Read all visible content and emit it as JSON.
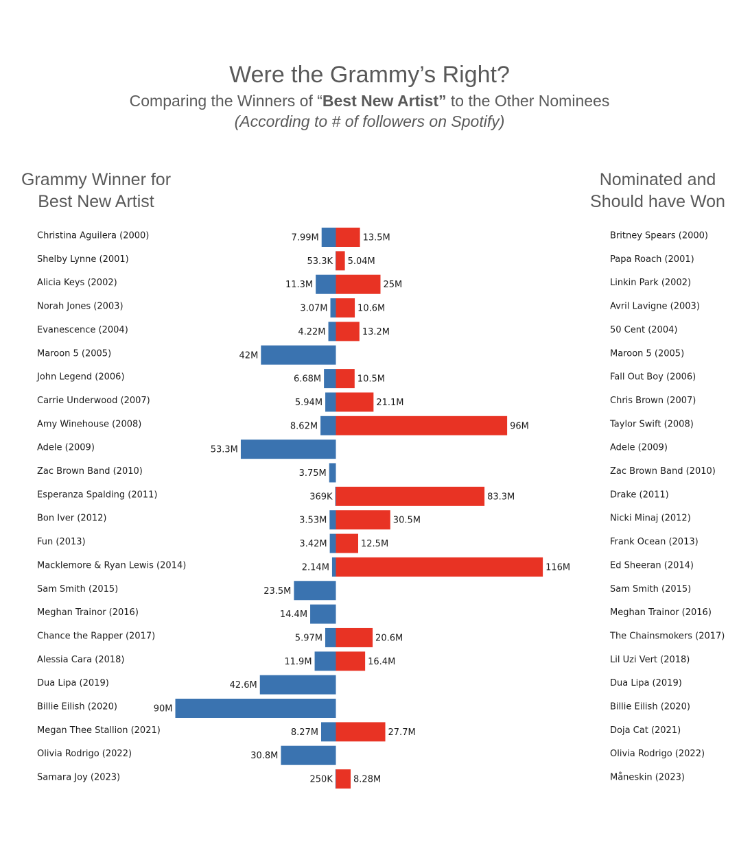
{
  "title": "Were the Grammy’s Right?",
  "subtitle": {
    "prefix": "Comparing the Winners of “",
    "bold": "Best New Artist”",
    "suffix": " to the Other Nominees"
  },
  "note": "(According to # of followers on Spotify)",
  "left_header": [
    "Grammy Winner for",
    "Best New Artist"
  ],
  "right_header": [
    "Nominated and",
    "Should have Won"
  ],
  "colors": {
    "winner": "#3a73b0",
    "nominee": "#e83324",
    "text": "#595959"
  },
  "chart_data": {
    "type": "bar",
    "orientation": "horizontal-diverging",
    "unit": "Spotify followers (millions)",
    "series": [
      {
        "name": "Grammy Winner for Best New Artist"
      },
      {
        "name": "Nominated and Should have Won"
      }
    ],
    "rows": [
      {
        "winner": "Christina Aguilera (2000)",
        "winner_value": 7.99,
        "winner_label": "7.99M",
        "nominee": "Britney Spears (2000)",
        "nominee_value": 13.5,
        "nominee_label": "13.5M"
      },
      {
        "winner": "Shelby Lynne (2001)",
        "winner_value": 0.0533,
        "winner_label": "53.3K",
        "nominee": "Papa Roach (2001)",
        "nominee_value": 5.04,
        "nominee_label": "5.04M"
      },
      {
        "winner": "Alicia Keys (2002)",
        "winner_value": 11.3,
        "winner_label": "11.3M",
        "nominee": "Linkin Park (2002)",
        "nominee_value": 25,
        "nominee_label": "25M"
      },
      {
        "winner": "Norah Jones (2003)",
        "winner_value": 3.07,
        "winner_label": "3.07M",
        "nominee": "Avril Lavigne (2003)",
        "nominee_value": 10.6,
        "nominee_label": "10.6M"
      },
      {
        "winner": "Evanescence (2004)",
        "winner_value": 4.22,
        "winner_label": "4.22M",
        "nominee": "50 Cent (2004)",
        "nominee_value": 13.2,
        "nominee_label": "13.2M"
      },
      {
        "winner": "Maroon 5 (2005)",
        "winner_value": 42,
        "winner_label": "42M",
        "nominee": "Maroon 5 (2005)",
        "nominee_value": null,
        "nominee_label": ""
      },
      {
        "winner": "John Legend (2006)",
        "winner_value": 6.68,
        "winner_label": "6.68M",
        "nominee": "Fall Out Boy (2006)",
        "nominee_value": 10.5,
        "nominee_label": "10.5M"
      },
      {
        "winner": "Carrie Underwood (2007)",
        "winner_value": 5.94,
        "winner_label": "5.94M",
        "nominee": "Chris Brown (2007)",
        "nominee_value": 21.1,
        "nominee_label": "21.1M"
      },
      {
        "winner": "Amy Winehouse (2008)",
        "winner_value": 8.62,
        "winner_label": "8.62M",
        "nominee": "Taylor Swift (2008)",
        "nominee_value": 96,
        "nominee_label": "96M"
      },
      {
        "winner": "Adele (2009)",
        "winner_value": 53.3,
        "winner_label": "53.3M",
        "nominee": "Adele (2009)",
        "nominee_value": null,
        "nominee_label": ""
      },
      {
        "winner": "Zac Brown Band (2010)",
        "winner_value": 3.75,
        "winner_label": "3.75M",
        "nominee": "Zac Brown Band (2010)",
        "nominee_value": null,
        "nominee_label": ""
      },
      {
        "winner": "Esperanza Spalding (2011)",
        "winner_value": 0.369,
        "winner_label": "369K",
        "nominee": "Drake (2011)",
        "nominee_value": 83.3,
        "nominee_label": "83.3M"
      },
      {
        "winner": "Bon Iver (2012)",
        "winner_value": 3.53,
        "winner_label": "3.53M",
        "nominee": "Nicki Minaj (2012)",
        "nominee_value": 30.5,
        "nominee_label": "30.5M"
      },
      {
        "winner": "Fun (2013)",
        "winner_value": 3.42,
        "winner_label": "3.42M",
        "nominee": "Frank Ocean (2013)",
        "nominee_value": 12.5,
        "nominee_label": "12.5M"
      },
      {
        "winner": "Macklemore & Ryan Lewis (2014)",
        "winner_value": 2.14,
        "winner_label": "2.14M",
        "nominee": "Ed Sheeran (2014)",
        "nominee_value": 116,
        "nominee_label": "116M"
      },
      {
        "winner": "Sam Smith (2015)",
        "winner_value": 23.5,
        "winner_label": "23.5M",
        "nominee": "Sam Smith (2015)",
        "nominee_value": null,
        "nominee_label": ""
      },
      {
        "winner": "Meghan Trainor (2016)",
        "winner_value": 14.4,
        "winner_label": "14.4M",
        "nominee": "Meghan Trainor (2016)",
        "nominee_value": null,
        "nominee_label": ""
      },
      {
        "winner": "Chance the Rapper (2017)",
        "winner_value": 5.97,
        "winner_label": "5.97M",
        "nominee": "The Chainsmokers (2017)",
        "nominee_value": 20.6,
        "nominee_label": "20.6M"
      },
      {
        "winner": "Alessia Cara (2018)",
        "winner_value": 11.9,
        "winner_label": "11.9M",
        "nominee": "Lil Uzi Vert (2018)",
        "nominee_value": 16.4,
        "nominee_label": "16.4M"
      },
      {
        "winner": "Dua Lipa (2019)",
        "winner_value": 42.6,
        "winner_label": "42.6M",
        "nominee": "Dua Lipa (2019)",
        "nominee_value": null,
        "nominee_label": ""
      },
      {
        "winner": "Billie Eilish (2020)",
        "winner_value": 90,
        "winner_label": "90M",
        "nominee": "Billie Eilish (2020)",
        "nominee_value": null,
        "nominee_label": ""
      },
      {
        "winner": "Megan Thee Stallion (2021)",
        "winner_value": 8.27,
        "winner_label": "8.27M",
        "nominee": "Doja Cat (2021)",
        "nominee_value": 27.7,
        "nominee_label": "27.7M"
      },
      {
        "winner": "Olivia Rodrigo (2022)",
        "winner_value": 30.8,
        "winner_label": "30.8M",
        "nominee": "Olivia Rodrigo (2022)",
        "nominee_value": null,
        "nominee_label": ""
      },
      {
        "winner": "Samara Joy (2023)",
        "winner_value": 0.25,
        "winner_label": "250K",
        "nominee": "Måneskin (2023)",
        "nominee_value": 8.28,
        "nominee_label": "8.28M"
      }
    ]
  }
}
